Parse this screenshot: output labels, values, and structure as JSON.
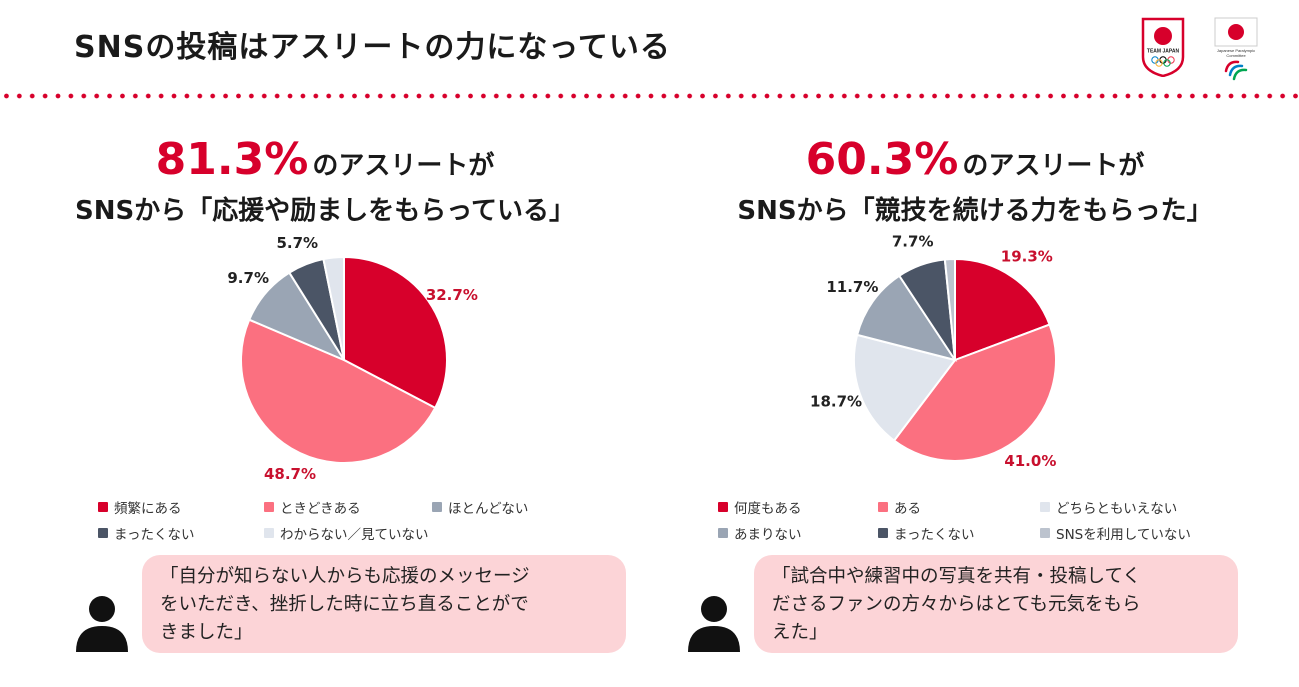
{
  "page": {
    "title": "SNSの投稿はアスリートの力になっている"
  },
  "logos": {
    "team_japan_text": "TEAM JAPAN",
    "paralympic_text": "Japanese Paralympic Committee"
  },
  "colors": {
    "accent": "#d7002b",
    "pink": "#fb7080",
    "quote_bg": "#fcd4d7"
  },
  "left": {
    "headline_pct": "81.3%",
    "headline_suffix": "のアスリートが",
    "headline_line2": "SNSから「応援や励ましをもらっている」",
    "quote_lines": [
      "「自分が知らない人からも応援のメッセージ",
      "をいただき、挫折した時に立ち直ることがで",
      "きました」"
    ]
  },
  "right": {
    "headline_pct": "60.3%",
    "headline_suffix": "のアスリートが",
    "headline_line2": "SNSから「競技を続ける力をもらった」",
    "quote_lines": [
      "「試合中や練習中の写真を共有・投稿してく",
      "ださるファンの方々からはとても元気をもら",
      "えた」"
    ]
  },
  "chart_data": [
    {
      "type": "pie",
      "title": "",
      "categories": [
        "頻繁にある",
        "ときどきある",
        "ほとんどない",
        "まったくない",
        "わからない／見ていない"
      ],
      "values": [
        32.7,
        48.7,
        9.7,
        5.7,
        3.2
      ],
      "value_labels": [
        "32.7%",
        "48.7%",
        "9.7%",
        "5.7%",
        ""
      ],
      "colors": [
        "#d7002b",
        "#fb7080",
        "#9aa5b4",
        "#4b5566",
        "#e0e5ed"
      ],
      "legend_placement": "bottom"
    },
    {
      "type": "pie",
      "title": "",
      "categories": [
        "何度もある",
        "ある",
        "どちらともいえない",
        "あまりない",
        "まったくない",
        "SNSを利用していない"
      ],
      "values": [
        19.3,
        41.0,
        18.7,
        11.7,
        7.7,
        1.6
      ],
      "value_labels": [
        "19.3%",
        "41.0%",
        "18.7%",
        "11.7%",
        "7.7%",
        ""
      ],
      "colors": [
        "#d7002b",
        "#fb7080",
        "#e0e5ed",
        "#9aa5b4",
        "#4b5566",
        "#bcc3ce"
      ],
      "legend_placement": "bottom"
    }
  ]
}
